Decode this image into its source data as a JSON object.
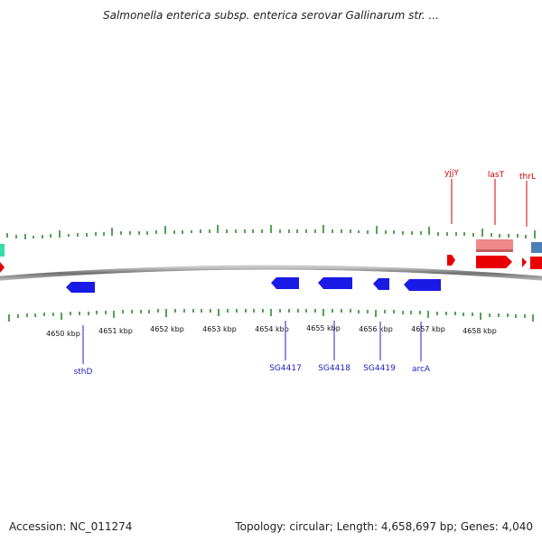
{
  "title": "Salmonella enterica subsp. enterica serovar Gallinarum str. ...",
  "footer": {
    "accession": "Accession: NC_011274",
    "summary": "Topology: circular; Length: 4,658,697 bp; Genes: 4,040"
  },
  "ruler": {
    "labels": [
      "4650 kbp",
      "4651 kbp",
      "4652 kbp",
      "4653 kbp",
      "4654 kbp",
      "4655 kbp",
      "4656 kbp",
      "4657 kbp",
      "4658 kbp"
    ]
  },
  "genes_forward": [
    "yjjY",
    "lasT",
    "thrL"
  ],
  "genes_reverse": [
    "sthD",
    "SG4417",
    "SG4418",
    "SG4419",
    "arcA"
  ],
  "colors": {
    "forward": "#e80000",
    "forward_light": "#f08a8a",
    "reverse": "#1a1ae6",
    "tick": "#2a8a2a",
    "backbone": "#808080",
    "teal": "#33ddaa",
    "steel": "#4a7fb5"
  }
}
